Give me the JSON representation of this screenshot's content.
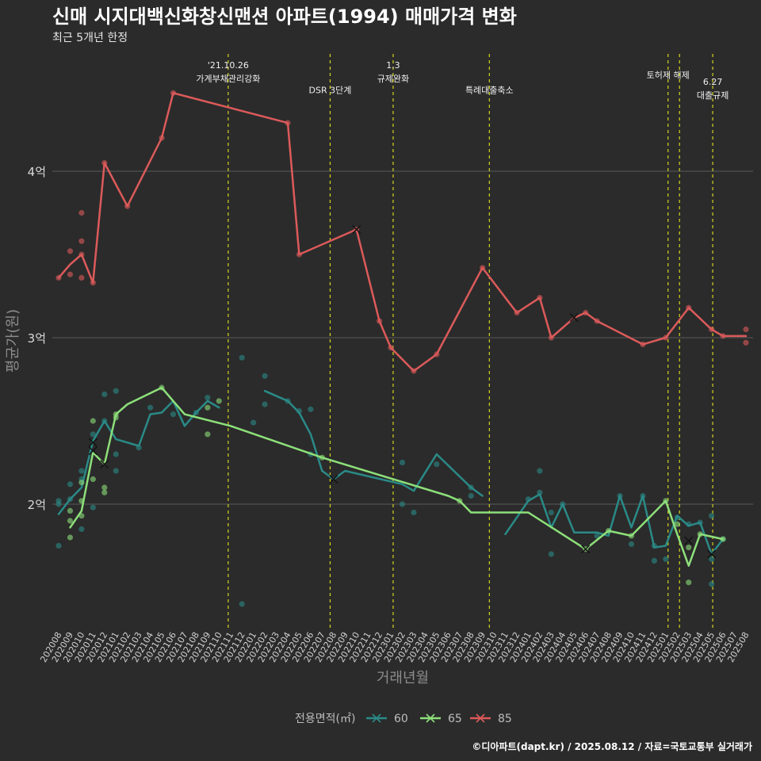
{
  "header": {
    "title": "신매 시지대백신화창신맨션 아파트(1994) 매매가격 변화",
    "subtitle": "최근 5개년 한정"
  },
  "caption": "©디아파트(dapt.kr) / 2025.08.12 / 자료=국토교통부 실거래가",
  "colors": {
    "background": "#2b2b2b",
    "grid": "#5a5a5a",
    "event_line": "#d4d41e",
    "s60": "#2a8a87",
    "s65": "#8de07a",
    "s85": "#dc5a5a"
  },
  "chart_data": {
    "type": "line",
    "xlabel": "거래년월",
    "ylabel": "평균가(원)",
    "x_categories": [
      "202008",
      "202009",
      "202010",
      "202011",
      "202012",
      "202101",
      "202102",
      "202103",
      "202104",
      "202105",
      "202106",
      "202107",
      "202108",
      "202109",
      "202110",
      "202111",
      "202112",
      "202201",
      "202202",
      "202203",
      "202204",
      "202205",
      "202206",
      "202207",
      "202208",
      "202209",
      "202210",
      "202211",
      "202212",
      "202301",
      "202302",
      "202303",
      "202304",
      "202305",
      "202306",
      "202307",
      "202308",
      "202309",
      "202310",
      "202311",
      "202312",
      "202401",
      "202402",
      "202403",
      "202404",
      "202405",
      "202406",
      "202407",
      "202408",
      "202409",
      "202410",
      "202411",
      "202412",
      "202501",
      "202502",
      "202503",
      "202504",
      "202505",
      "202506",
      "202507",
      "202508"
    ],
    "y_ticks": [
      {
        "value": 2.0,
        "label": "2억"
      },
      {
        "value": 3.0,
        "label": "3억"
      },
      {
        "value": 4.0,
        "label": "4억"
      }
    ],
    "y_unit": "억",
    "ylim": [
      1.3,
      4.9
    ],
    "grid": true,
    "legend": {
      "title": "전용면적(㎡)",
      "position": "bottom",
      "entries": [
        "60",
        "65",
        "85"
      ]
    },
    "events": [
      {
        "x": 14.8,
        "labels": [
          "'21.10.26",
          "가계부채관리강화"
        ],
        "label_y": 4.62
      },
      {
        "x": 23.7,
        "labels": [
          "DSR 3단계"
        ],
        "label_y": 4.47
      },
      {
        "x": 29.2,
        "labels": [
          "1.3",
          "규제완화"
        ],
        "label_y": 4.62
      },
      {
        "x": 37.6,
        "labels": [
          "특례대출축소"
        ],
        "label_y": 4.47
      },
      {
        "x": 53.2,
        "labels": [
          "토허제 해제"
        ],
        "label_y": 4.56
      },
      {
        "x": 54.2,
        "labels": [],
        "label_y": 4.56
      },
      {
        "x": 57.1,
        "labels": [
          "6.27",
          "대출규제"
        ],
        "label_y": 4.52
      }
    ],
    "series": [
      {
        "name": "60",
        "color": "#2a8a87",
        "line": [
          [
            0,
            1.94
          ],
          [
            1,
            2.03
          ],
          [
            2,
            2.1
          ],
          [
            3,
            2.38
          ],
          [
            4,
            2.5
          ],
          [
            5,
            2.39
          ],
          [
            7,
            2.35
          ],
          [
            8,
            2.54
          ],
          [
            9,
            2.55
          ],
          [
            10,
            2.62
          ],
          [
            11,
            2.47
          ],
          [
            12,
            2.55
          ],
          [
            13,
            2.62
          ],
          [
            14,
            2.58
          ],
          [
            15,
            null
          ],
          [
            18,
            2.68
          ],
          [
            20,
            2.62
          ],
          [
            21,
            2.55
          ],
          [
            22,
            2.42
          ],
          [
            23,
            2.2
          ],
          [
            24,
            2.15
          ],
          [
            25,
            2.2
          ],
          [
            30,
            2.12
          ],
          [
            31,
            2.08
          ],
          [
            33,
            2.3
          ],
          [
            36,
            2.1
          ],
          [
            37,
            2.05
          ],
          [
            38,
            null
          ],
          [
            39,
            1.82
          ],
          [
            41,
            2.02
          ],
          [
            42,
            2.06
          ],
          [
            43,
            1.86
          ],
          [
            44,
            2.0
          ],
          [
            45,
            1.83
          ],
          [
            47,
            1.83
          ],
          [
            48,
            1.81
          ],
          [
            49,
            2.05
          ],
          [
            50,
            1.86
          ],
          [
            51,
            2.05
          ],
          [
            52,
            1.74
          ],
          [
            53,
            1.75
          ],
          [
            54,
            1.93
          ],
          [
            55,
            1.87
          ],
          [
            56,
            1.89
          ],
          [
            57,
            1.7
          ],
          [
            58,
            1.79
          ]
        ],
        "crosses": [
          [
            3,
            2.37
          ],
          [
            24,
            2.15
          ],
          [
            57,
            1.7
          ]
        ],
        "points": [
          [
            0,
            1.75
          ],
          [
            0,
            2.0
          ],
          [
            0,
            2.02
          ],
          [
            1,
            2.03
          ],
          [
            1,
            2.12
          ],
          [
            2,
            2.2
          ],
          [
            2,
            1.85
          ],
          [
            2,
            2.15
          ],
          [
            3,
            1.98
          ],
          [
            3,
            2.42
          ],
          [
            4,
            2.66
          ],
          [
            4,
            2.5
          ],
          [
            5,
            2.68
          ],
          [
            5,
            2.3
          ],
          [
            5,
            2.2
          ],
          [
            7,
            2.34
          ],
          [
            8,
            2.58
          ],
          [
            10,
            2.54
          ],
          [
            12,
            2.55
          ],
          [
            13,
            2.64
          ],
          [
            16,
            1.4
          ],
          [
            16,
            2.88
          ],
          [
            17,
            2.49
          ],
          [
            18,
            2.77
          ],
          [
            18,
            2.6
          ],
          [
            20,
            2.62
          ],
          [
            21,
            2.56
          ],
          [
            22,
            2.3
          ],
          [
            22,
            2.57
          ],
          [
            30,
            2.25
          ],
          [
            30,
            2.0
          ],
          [
            31,
            1.95
          ],
          [
            33,
            2.24
          ],
          [
            36,
            2.1
          ],
          [
            36,
            2.05
          ],
          [
            41,
            2.03
          ],
          [
            42,
            2.2
          ],
          [
            42,
            2.07
          ],
          [
            43,
            1.95
          ],
          [
            43,
            1.7
          ],
          [
            44,
            2.0
          ],
          [
            47,
            1.81
          ],
          [
            49,
            2.05
          ],
          [
            50,
            1.76
          ],
          [
            51,
            2.05
          ],
          [
            52,
            1.66
          ],
          [
            52,
            1.75
          ],
          [
            53,
            1.67
          ],
          [
            54,
            1.92
          ],
          [
            55,
            1.88
          ],
          [
            56,
            1.89
          ],
          [
            57,
            1.67
          ],
          [
            57,
            1.52
          ],
          [
            57,
            1.93
          ],
          [
            58,
            1.79
          ]
        ]
      },
      {
        "name": "65",
        "color": "#8de07a",
        "line": [
          [
            1,
            1.86
          ],
          [
            2,
            1.96
          ],
          [
            3,
            2.31
          ],
          [
            4,
            2.24
          ],
          [
            5,
            2.54
          ],
          [
            6,
            2.6
          ],
          [
            9,
            2.7
          ],
          [
            11,
            2.54
          ],
          [
            15,
            2.47
          ],
          [
            23,
            2.28
          ],
          [
            34,
            2.05
          ],
          [
            35,
            2.02
          ],
          [
            36,
            1.95
          ],
          [
            41,
            1.95
          ],
          [
            46,
            1.73
          ],
          [
            48,
            1.84
          ],
          [
            50,
            1.81
          ],
          [
            53,
            2.02
          ],
          [
            54,
            1.82
          ],
          [
            55,
            1.63
          ],
          [
            56,
            1.82
          ],
          [
            58,
            1.79
          ]
        ],
        "crosses": [
          [
            3,
            2.32
          ],
          [
            4,
            2.24
          ],
          [
            46,
            1.73
          ],
          [
            55,
            1.78
          ]
        ],
        "points": [
          [
            1,
            1.8
          ],
          [
            1,
            1.9
          ],
          [
            1,
            1.96
          ],
          [
            2,
            1.93
          ],
          [
            2,
            2.02
          ],
          [
            2,
            2.13
          ],
          [
            3,
            2.5
          ],
          [
            3,
            2.15
          ],
          [
            4,
            2.07
          ],
          [
            4,
            2.1
          ],
          [
            5,
            2.54
          ],
          [
            5,
            2.52
          ],
          [
            9,
            2.7
          ],
          [
            13,
            2.58
          ],
          [
            13,
            2.42
          ],
          [
            14,
            2.62
          ],
          [
            23,
            2.28
          ],
          [
            35,
            2.02
          ],
          [
            46,
            1.73
          ],
          [
            48,
            1.84
          ],
          [
            50,
            1.81
          ],
          [
            53,
            2.02
          ],
          [
            54,
            1.88
          ],
          [
            55,
            1.53
          ],
          [
            55,
            1.74
          ],
          [
            56,
            1.82
          ],
          [
            58,
            1.79
          ]
        ]
      },
      {
        "name": "85",
        "color": "#dc5a5a",
        "line": [
          [
            0,
            3.36
          ],
          [
            1,
            3.44
          ],
          [
            2,
            3.5
          ],
          [
            3,
            3.33
          ],
          [
            4,
            4.05
          ],
          [
            6,
            3.79
          ],
          [
            9,
            4.2
          ],
          [
            10,
            4.47
          ],
          [
            20,
            4.29
          ],
          [
            21,
            3.5
          ],
          [
            26,
            3.65
          ],
          [
            28,
            3.1
          ],
          [
            29,
            2.94
          ],
          [
            31,
            2.8
          ],
          [
            33,
            2.9
          ],
          [
            37,
            3.42
          ],
          [
            40,
            3.15
          ],
          [
            42,
            3.24
          ],
          [
            43,
            3.0
          ],
          [
            45,
            3.12
          ],
          [
            46,
            3.15
          ],
          [
            47,
            3.1
          ],
          [
            51,
            2.96
          ],
          [
            53,
            3.0
          ],
          [
            55,
            3.18
          ],
          [
            57,
            3.05
          ],
          [
            58,
            3.01
          ],
          [
            60,
            3.01
          ]
        ],
        "crosses": [
          [
            26,
            3.65
          ],
          [
            45,
            3.12
          ]
        ],
        "points": [
          [
            0,
            3.36
          ],
          [
            1,
            3.52
          ],
          [
            1,
            3.38
          ],
          [
            2,
            3.75
          ],
          [
            2,
            3.58
          ],
          [
            2,
            3.5
          ],
          [
            2,
            3.36
          ],
          [
            3,
            3.33
          ],
          [
            4,
            4.05
          ],
          [
            6,
            3.79
          ],
          [
            9,
            4.2
          ],
          [
            10,
            4.47
          ],
          [
            20,
            4.29
          ],
          [
            21,
            3.5
          ],
          [
            26,
            3.65
          ],
          [
            28,
            3.1
          ],
          [
            29,
            2.94
          ],
          [
            31,
            2.8
          ],
          [
            33,
            2.9
          ],
          [
            37,
            3.42
          ],
          [
            40,
            3.15
          ],
          [
            42,
            3.24
          ],
          [
            43,
            3.0
          ],
          [
            46,
            3.15
          ],
          [
            47,
            3.1
          ],
          [
            51,
            2.96
          ],
          [
            53,
            3.0
          ],
          [
            55,
            3.18
          ],
          [
            57,
            3.05
          ],
          [
            58,
            3.01
          ],
          [
            60,
            3.05
          ],
          [
            60,
            2.97
          ]
        ]
      }
    ]
  }
}
